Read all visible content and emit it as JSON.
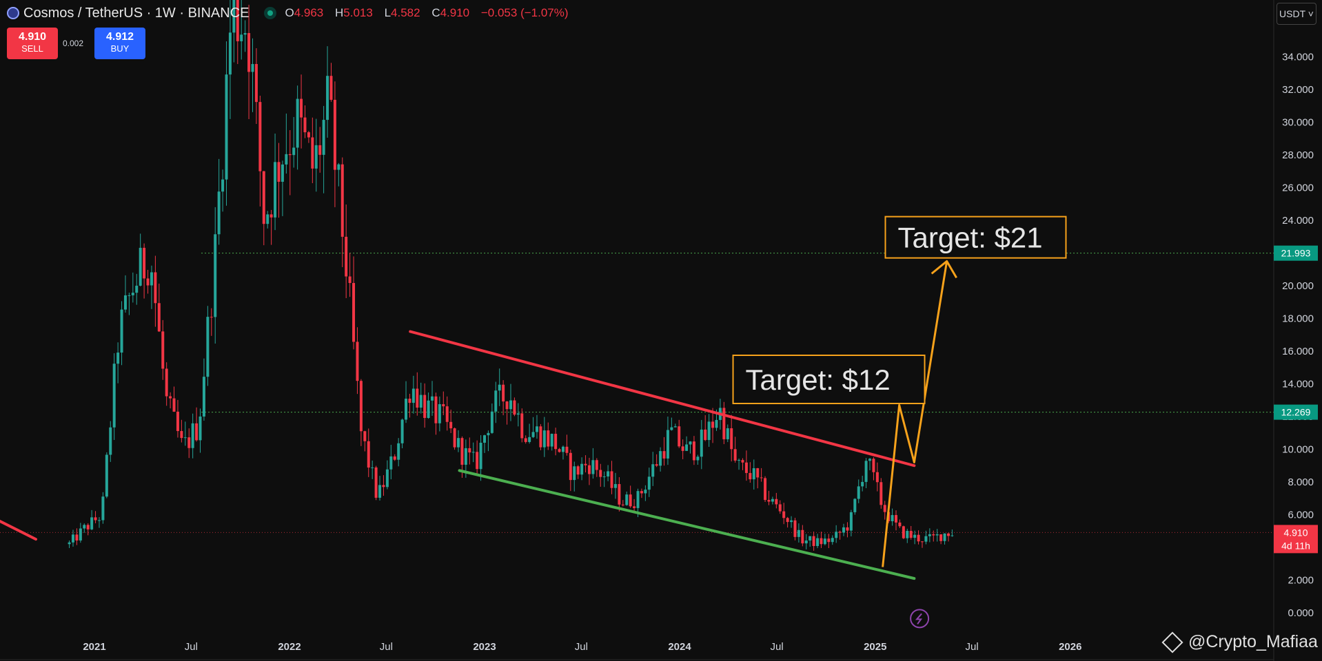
{
  "header": {
    "title": "Cosmos / TetherUS · 1W · BINANCE",
    "ohlc": [
      {
        "k": "O",
        "v": "4.963"
      },
      {
        "k": "H",
        "v": "5.013"
      },
      {
        "k": "L",
        "v": "4.582"
      },
      {
        "k": "C",
        "v": "4.910"
      },
      {
        "k": "",
        "v": "−0.053 (−1.07%)"
      }
    ]
  },
  "trade": {
    "sell_price": "4.910",
    "sell_label": "SELL",
    "buy_price": "4.912",
    "buy_label": "BUY",
    "spread": "0.002"
  },
  "currency_button": "USDT ˅",
  "watermark": "@Crypto_Mafiaa",
  "colors": {
    "up": "#26a69a",
    "down": "#f23645",
    "background": "#0e0e0e",
    "resistance": "#f23645",
    "support": "#4caf50",
    "projection": "#f7a21b",
    "level_green": "#089981"
  },
  "chart_data": {
    "type": "candlestick",
    "symbol": "ATOMUSDT",
    "interval": "1W",
    "y_ticks": [
      "0.000",
      "2.000",
      "4.000",
      "6.000",
      "8.000",
      "10.000",
      "12.000",
      "14.000",
      "16.000",
      "18.000",
      "20.000",
      "22.000",
      "24.000",
      "26.000",
      "28.000",
      "30.000",
      "32.000",
      "34.000"
    ],
    "ylim": [
      0,
      36
    ],
    "x_ticks": [
      "2021",
      "Jul",
      "2022",
      "Jul",
      "2023",
      "Jul",
      "2024",
      "Jul",
      "2025",
      "Jul",
      "2026"
    ],
    "price_levels": [
      {
        "value": 21.993,
        "label": "21.993"
      },
      {
        "value": 12.269,
        "label": "12.269"
      }
    ],
    "current_price": {
      "value": 4.91,
      "label": "4.910",
      "countdown": "4d 11h"
    },
    "trendlines": [
      {
        "name": "descending resistance",
        "from": [
          "2022-08",
          17.2
        ],
        "to": [
          "2025-03",
          9.0
        ]
      },
      {
        "name": "descending support",
        "from": [
          "2022-11",
          8.7
        ],
        "to": [
          "2025-03",
          2.1
        ]
      }
    ],
    "projection_path": [
      [
        "2025-01",
        2.8
      ],
      [
        "2025-02",
        12.7
      ],
      [
        "2025-03",
        9.2
      ],
      [
        "2025-05",
        21.5
      ]
    ],
    "annotations": [
      "Target: $12",
      "Target: $21"
    ],
    "weekly_closes": [
      {
        "date": "2020-11",
        "close": 4.2
      },
      {
        "date": "2020-12",
        "close": 5.2
      },
      {
        "date": "2021-01",
        "close": 6.0
      },
      {
        "date": "2021-02",
        "close": 17.0
      },
      {
        "date": "2021-03",
        "close": 20.0
      },
      {
        "date": "2021-04",
        "close": 22.0
      },
      {
        "date": "2021-05",
        "close": 13.0
      },
      {
        "date": "2021-06",
        "close": 10.0
      },
      {
        "date": "2021-07",
        "close": 11.5
      },
      {
        "date": "2021-08",
        "close": 22.0
      },
      {
        "date": "2021-09",
        "close": 37.0
      },
      {
        "date": "2021-10",
        "close": 36.0
      },
      {
        "date": "2021-11",
        "close": 24.0
      },
      {
        "date": "2021-12",
        "close": 28.0
      },
      {
        "date": "2022-01",
        "close": 30.0
      },
      {
        "date": "2022-02",
        "close": 27.0
      },
      {
        "date": "2022-03",
        "close": 31.0
      },
      {
        "date": "2022-04",
        "close": 22.0
      },
      {
        "date": "2022-05",
        "close": 11.0
      },
      {
        "date": "2022-06",
        "close": 7.0
      },
      {
        "date": "2022-07",
        "close": 9.5
      },
      {
        "date": "2022-08",
        "close": 14.0
      },
      {
        "date": "2022-09",
        "close": 12.5
      },
      {
        "date": "2022-10",
        "close": 11.8
      },
      {
        "date": "2022-11",
        "close": 10.0
      },
      {
        "date": "2022-12",
        "close": 9.0
      },
      {
        "date": "2023-01",
        "close": 12.5
      },
      {
        "date": "2023-02",
        "close": 13.5
      },
      {
        "date": "2023-03",
        "close": 11.2
      },
      {
        "date": "2023-04",
        "close": 11.0
      },
      {
        "date": "2023-05",
        "close": 10.3
      },
      {
        "date": "2023-06",
        "close": 8.5
      },
      {
        "date": "2023-07",
        "close": 9.2
      },
      {
        "date": "2023-08",
        "close": 8.3
      },
      {
        "date": "2023-09",
        "close": 6.8
      },
      {
        "date": "2023-10",
        "close": 7.0
      },
      {
        "date": "2023-11",
        "close": 9.0
      },
      {
        "date": "2023-12",
        "close": 11.0
      },
      {
        "date": "2024-01",
        "close": 9.8
      },
      {
        "date": "2024-02",
        "close": 10.5
      },
      {
        "date": "2024-03",
        "close": 12.5
      },
      {
        "date": "2024-04",
        "close": 9.0
      },
      {
        "date": "2024-05",
        "close": 8.5
      },
      {
        "date": "2024-06",
        "close": 7.0
      },
      {
        "date": "2024-07",
        "close": 6.0
      },
      {
        "date": "2024-08",
        "close": 4.5
      },
      {
        "date": "2024-09",
        "close": 4.3
      },
      {
        "date": "2024-10",
        "close": 4.5
      },
      {
        "date": "2024-11",
        "close": 5.5
      },
      {
        "date": "2024-12",
        "close": 9.5
      },
      {
        "date": "2025-01",
        "close": 6.5
      },
      {
        "date": "2025-02",
        "close": 5.0
      },
      {
        "date": "2025-03",
        "close": 4.6
      },
      {
        "date": "2025-04",
        "close": 4.5
      },
      {
        "date": "2025-05",
        "close": 4.91
      }
    ]
  }
}
